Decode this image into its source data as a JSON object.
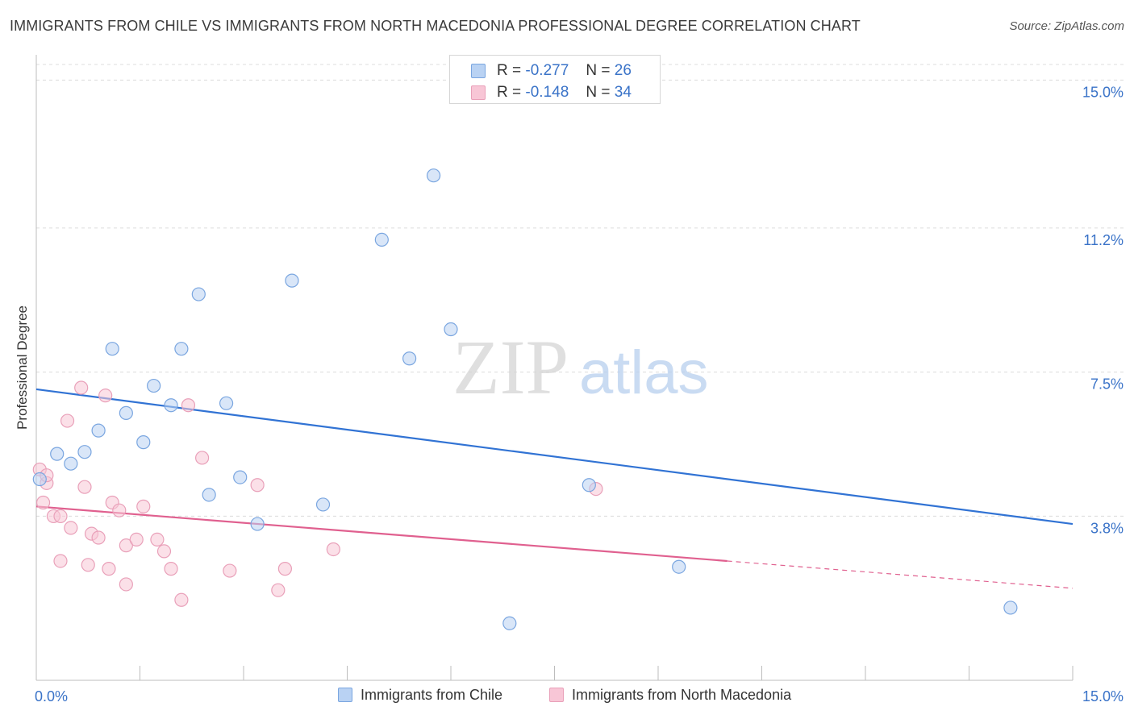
{
  "title": "IMMIGRANTS FROM CHILE VS IMMIGRANTS FROM NORTH MACEDONIA PROFESSIONAL DEGREE CORRELATION CHART",
  "source": "Source: ZipAtlas.com",
  "watermark": {
    "zip": "ZIP",
    "atlas": "atlas"
  },
  "legend_top": [
    {
      "r_label": "R =",
      "r_value": "-0.277",
      "n_label": "N =",
      "n_value": "26"
    },
    {
      "r_label": "R =",
      "r_value": "-0.148",
      "n_label": "N =",
      "n_value": "34"
    }
  ],
  "legend_bottom": [
    {
      "label": "Immigrants from Chile"
    },
    {
      "label": "Immigrants from North Macedonia"
    }
  ],
  "colors": {
    "chile_fill": "#b9d2f3",
    "chile_stroke": "#7aa6e0",
    "chile_line": "#3173d4",
    "mac_fill": "#f8c6d6",
    "mac_stroke": "#e9a0b9",
    "mac_line": "#e0608f",
    "tick_label": "#3a73c8",
    "grid": "#dcdcdc"
  },
  "chart_data": {
    "type": "scatter",
    "title": "IMMIGRANTS FROM CHILE VS IMMIGRANTS FROM NORTH MACEDONIA PROFESSIONAL DEGREE CORRELATION CHART",
    "xlabel": "",
    "ylabel": "Professional Degree",
    "xlim": [
      0,
      15
    ],
    "ylim": [
      0,
      15.4
    ],
    "x_tick_labels": [
      {
        "value": 0,
        "label": "0.0%"
      },
      {
        "value": 15,
        "label": "15.0%"
      }
    ],
    "y_ticks": [
      {
        "value": 3.8,
        "label": "3.8%"
      },
      {
        "value": 7.5,
        "label": "7.5%"
      },
      {
        "value": 11.2,
        "label": "11.2%"
      },
      {
        "value": 15.0,
        "label": "15.0%"
      }
    ],
    "series": [
      {
        "name": "Immigrants from Chile",
        "R": -0.277,
        "N": 26,
        "trend": {
          "x0": 0,
          "y0": 7.06,
          "x1": 15,
          "y1": 3.6,
          "solid_until": 15
        },
        "points": [
          [
            0.05,
            4.75
          ],
          [
            0.3,
            5.4
          ],
          [
            0.5,
            5.15
          ],
          [
            0.7,
            5.45
          ],
          [
            0.9,
            6.0
          ],
          [
            1.1,
            8.1
          ],
          [
            1.3,
            6.45
          ],
          [
            1.55,
            5.7
          ],
          [
            1.7,
            7.15
          ],
          [
            1.95,
            6.65
          ],
          [
            2.1,
            8.1
          ],
          [
            2.35,
            9.5
          ],
          [
            2.5,
            4.35
          ],
          [
            2.75,
            6.7
          ],
          [
            2.95,
            4.8
          ],
          [
            3.2,
            3.6
          ],
          [
            3.7,
            9.85
          ],
          [
            4.15,
            4.1
          ],
          [
            5.0,
            10.9
          ],
          [
            5.4,
            7.85
          ],
          [
            5.75,
            12.55
          ],
          [
            6.0,
            8.6
          ],
          [
            6.85,
            1.05
          ],
          [
            8.0,
            4.6
          ],
          [
            9.3,
            2.5
          ],
          [
            14.1,
            1.45
          ]
        ]
      },
      {
        "name": "Immigrants from North Macedonia",
        "R": -0.148,
        "N": 34,
        "trend": {
          "x0": 0,
          "y0": 4.05,
          "x1": 15,
          "y1": 1.95,
          "solid_until": 10.0
        },
        "points": [
          [
            0.05,
            5.0
          ],
          [
            0.1,
            4.15
          ],
          [
            0.15,
            4.65
          ],
          [
            0.25,
            3.8
          ],
          [
            0.35,
            3.8
          ],
          [
            0.35,
            2.65
          ],
          [
            0.45,
            6.25
          ],
          [
            0.5,
            3.5
          ],
          [
            0.65,
            7.1
          ],
          [
            0.7,
            4.55
          ],
          [
            0.75,
            2.55
          ],
          [
            0.8,
            3.35
          ],
          [
            0.9,
            3.25
          ],
          [
            1.0,
            6.9
          ],
          [
            1.05,
            2.45
          ],
          [
            1.1,
            4.15
          ],
          [
            1.2,
            3.95
          ],
          [
            1.3,
            3.05
          ],
          [
            1.3,
            2.05
          ],
          [
            1.45,
            3.2
          ],
          [
            1.55,
            4.05
          ],
          [
            1.75,
            3.2
          ],
          [
            1.85,
            2.9
          ],
          [
            1.95,
            2.45
          ],
          [
            2.1,
            1.65
          ],
          [
            2.2,
            6.65
          ],
          [
            2.4,
            5.3
          ],
          [
            2.8,
            2.4
          ],
          [
            3.2,
            4.6
          ],
          [
            3.5,
            1.9
          ],
          [
            3.6,
            2.45
          ],
          [
            4.3,
            2.95
          ],
          [
            8.1,
            4.5
          ],
          [
            0.15,
            4.85
          ]
        ]
      }
    ]
  }
}
